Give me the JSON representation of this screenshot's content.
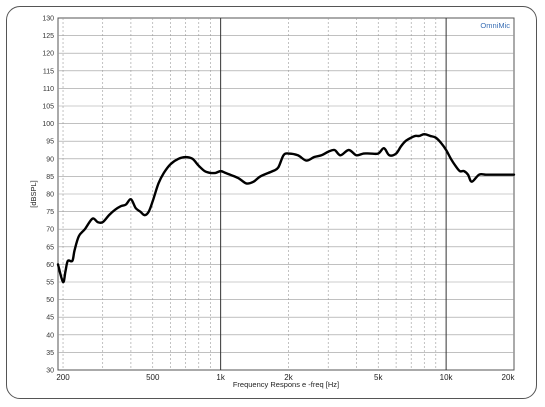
{
  "app": {
    "brand": "OmniMic",
    "brand_color": "#3a6fb5"
  },
  "chart_data": {
    "type": "line",
    "title": "",
    "xlabel": "Frequency Respons e -freq [Hz]",
    "ylabel": "[dBSPL]",
    "xscale": "log",
    "xlim": [
      190,
      20000
    ],
    "ylim": [
      30,
      130
    ],
    "grid": true,
    "legend": "none",
    "x_tick_labels": [
      {
        "value": 200,
        "label": "200"
      },
      {
        "value": 500,
        "label": "500"
      },
      {
        "value": 1000,
        "label": "1k"
      },
      {
        "value": 2000,
        "label": "2k"
      },
      {
        "value": 5000,
        "label": "5k"
      },
      {
        "value": 10000,
        "label": "10k"
      },
      {
        "value": 20000,
        "label": "20k"
      }
    ],
    "y_tick_labels": [
      "30",
      "35",
      "40",
      "45",
      "50",
      "55",
      "60",
      "65",
      "70",
      "75",
      "80",
      "85",
      "90",
      "95",
      "100",
      "105",
      "110",
      "115",
      "120",
      "125",
      "130"
    ],
    "line_color": "#000000",
    "series": [
      {
        "x": [
          190,
          200,
          205,
          210,
          220,
          225,
          235,
          250,
          270,
          285,
          300,
          320,
          340,
          360,
          380,
          400,
          420,
          440,
          460,
          480,
          500,
          530,
          560,
          600,
          650,
          700,
          750,
          800,
          850,
          900,
          950,
          1000,
          1050,
          1100,
          1200,
          1300,
          1400,
          1500,
          1700,
          1800,
          1900,
          2000,
          2200,
          2400,
          2600,
          2800,
          3000,
          3200,
          3400,
          3700,
          4000,
          4300,
          4600,
          5000,
          5300,
          5600,
          6000,
          6300,
          6600,
          7000,
          7300,
          7600,
          8000,
          8500,
          9000,
          9500,
          10000,
          10500,
          11000,
          11500,
          12000,
          12500,
          13000,
          14000,
          15000,
          16000,
          17000,
          18000,
          18500,
          19000,
          19500,
          20000
        ],
        "values": [
          60,
          55,
          58,
          61,
          61,
          64,
          68,
          70,
          73,
          72,
          72,
          74,
          75.5,
          76.5,
          77,
          78.5,
          76,
          75,
          74,
          75,
          78,
          83,
          86,
          88.5,
          90,
          90.5,
          90,
          88,
          86.5,
          86,
          86,
          86.5,
          86,
          85.5,
          84.5,
          83,
          83.5,
          85,
          86.5,
          87.5,
          91,
          91.5,
          91,
          89.5,
          90.5,
          91,
          92,
          92.5,
          91,
          92.5,
          91,
          91.5,
          91.5,
          91.5,
          93,
          91,
          91.5,
          93.5,
          95,
          96,
          96.5,
          96.5,
          97,
          96.5,
          96,
          94.5,
          92.5,
          90,
          88,
          86.5,
          86.5,
          85.5,
          83.5,
          85.5,
          85.5,
          85.5,
          85.5,
          85.5,
          85.5,
          85.5,
          85.5,
          85.5
        ]
      }
    ]
  }
}
